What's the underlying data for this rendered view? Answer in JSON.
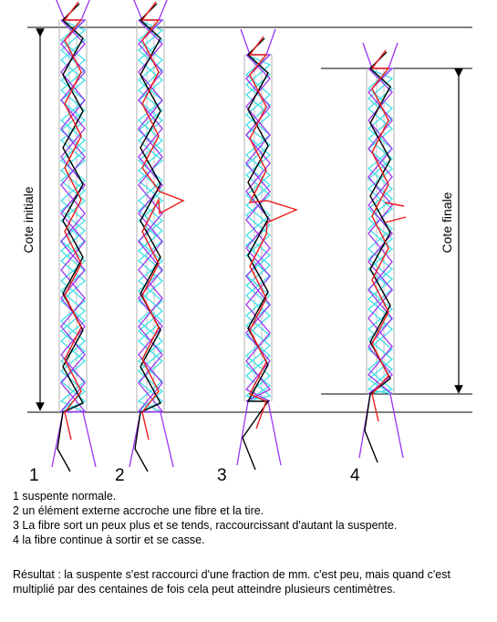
{
  "figure": {
    "labels": {
      "cote_initiale": "Cote initiale",
      "cote_finale": "Cote finale"
    },
    "panel_numbers": [
      "1",
      "2",
      "3",
      "4"
    ],
    "colors": {
      "cyan": "#3ee0e8",
      "violet": "#9b34f0",
      "red": "#ee1c1c",
      "black": "#000000",
      "grey": "#b0b0b0"
    }
  },
  "captions": [
    "1 suspente normale.",
    "2 un élément externe accroche une fibre et la tire.",
    "3 La fibre sort un peux plus et se tends, raccourcissant d'autant la suspente.",
    "4 la fibre continue à sortir et se casse."
  ],
  "result": "Résultat : la suspente s'est raccourci d'une fraction de mm. c'est peu, mais quand c'est multiplié par des centaines de fois cela peut atteindre plusieurs centimètres."
}
